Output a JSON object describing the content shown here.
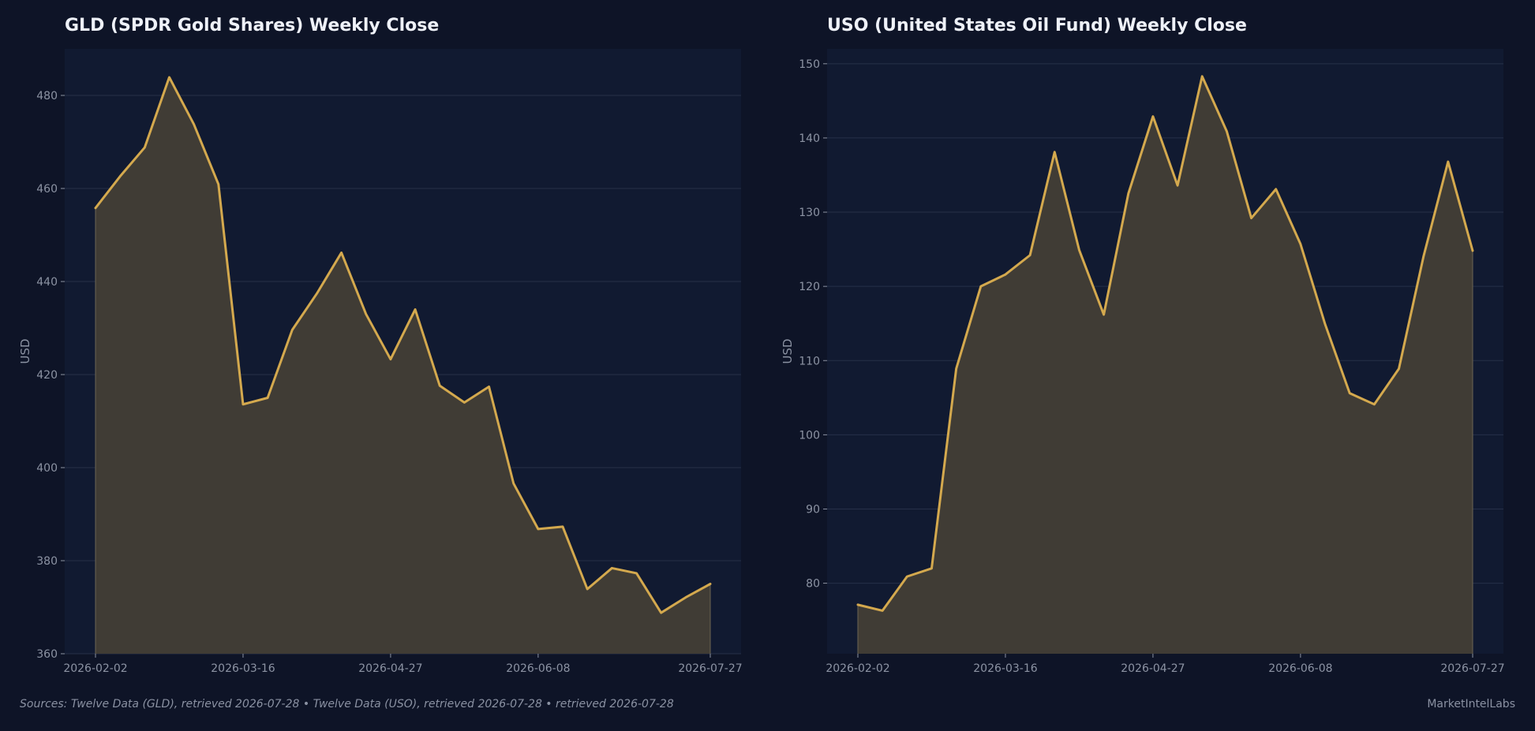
{
  "colors": {
    "background": "#0e1427",
    "plot_background": "#111a31",
    "line": "#d4a94e",
    "fill": "#403c35",
    "grid": "#263048",
    "text": "#8c93a3",
    "title": "#eef1f8"
  },
  "footer": {
    "sources": "Sources: Twelve Data (GLD), retrieved 2026-07-28  •  Twelve Data (USO), retrieved 2026-07-28  •  retrieved 2026-07-28",
    "brand": "MarketIntelLabs"
  },
  "chart_data": [
    {
      "type": "area",
      "title": "GLD (SPDR Gold Shares) Weekly Close",
      "xlabel": "",
      "ylabel": "USD",
      "grid": true,
      "ylim": [
        360,
        490
      ],
      "y_ticks": [
        360,
        380,
        400,
        420,
        440,
        460,
        480
      ],
      "x_tick_labels": [
        "2026-02-02",
        "2026-03-16",
        "2026-04-27",
        "2026-06-08",
        "2026-07-27"
      ],
      "x": [
        "2026-02-02",
        "2026-02-09",
        "2026-02-16",
        "2026-02-23",
        "2026-03-02",
        "2026-03-09",
        "2026-03-16",
        "2026-03-23",
        "2026-03-30",
        "2026-04-06",
        "2026-04-13",
        "2026-04-20",
        "2026-04-27",
        "2026-05-04",
        "2026-05-11",
        "2026-05-18",
        "2026-05-25",
        "2026-06-01",
        "2026-06-08",
        "2026-06-15",
        "2026-06-22",
        "2026-06-29",
        "2026-07-06",
        "2026-07-13",
        "2026-07-20",
        "2026-07-27"
      ],
      "series": [
        {
          "values": [
            455.8,
            462.6,
            468.8,
            483.9,
            473.8,
            460.9,
            413.6,
            415.0,
            429.6,
            437.4,
            446.2,
            433.0,
            423.3,
            434.0,
            417.6,
            414.0,
            417.4,
            396.6,
            386.8,
            387.3,
            373.9,
            378.4,
            377.3,
            368.8,
            372.1,
            375.0
          ]
        }
      ]
    },
    {
      "type": "area",
      "title": "USO (United States Oil Fund) Weekly Close",
      "xlabel": "",
      "ylabel": "USD",
      "grid": true,
      "ylim": [
        70.5,
        152
      ],
      "y_ticks": [
        80,
        90,
        100,
        110,
        120,
        130,
        140,
        150
      ],
      "x_tick_labels": [
        "2026-02-02",
        "2026-03-16",
        "2026-04-27",
        "2026-06-08",
        "2026-07-27"
      ],
      "x": [
        "2026-02-02",
        "2026-02-09",
        "2026-02-16",
        "2026-02-23",
        "2026-03-02",
        "2026-03-09",
        "2026-03-16",
        "2026-03-23",
        "2026-03-30",
        "2026-04-06",
        "2026-04-13",
        "2026-04-20",
        "2026-04-27",
        "2026-05-04",
        "2026-05-11",
        "2026-05-18",
        "2026-05-25",
        "2026-06-01",
        "2026-06-08",
        "2026-06-15",
        "2026-06-22",
        "2026-06-29",
        "2026-07-06",
        "2026-07-13",
        "2026-07-20",
        "2026-07-27"
      ],
      "series": [
        {
          "values": [
            77.1,
            76.3,
            80.9,
            82.0,
            108.9,
            120.0,
            121.6,
            124.2,
            138.1,
            124.9,
            116.2,
            132.5,
            142.9,
            133.6,
            148.3,
            140.9,
            129.2,
            133.1,
            125.7,
            114.9,
            105.6,
            104.1,
            108.9,
            124.0,
            136.8,
            124.8
          ]
        }
      ]
    }
  ]
}
